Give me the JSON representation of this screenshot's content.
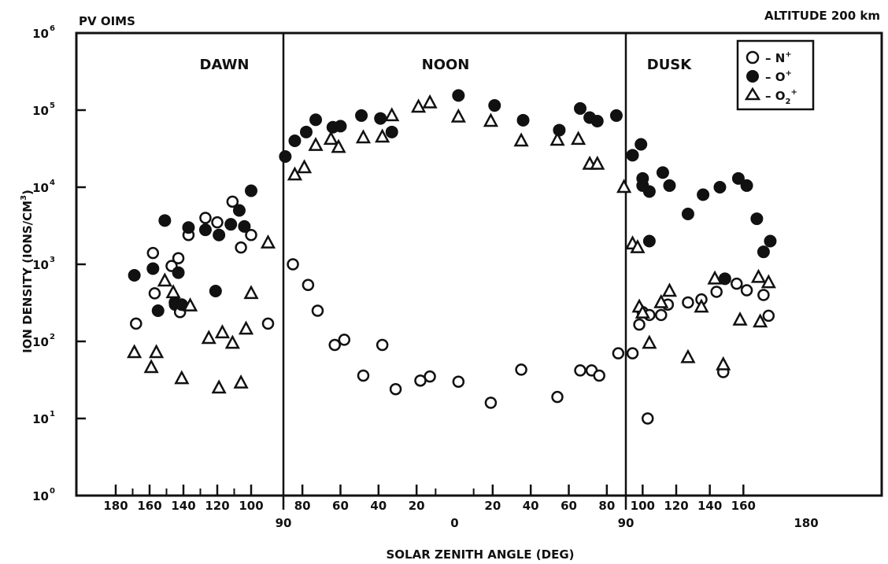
{
  "chart_data": {
    "type": "scatter",
    "title_left": "PV OIMS",
    "title_right": "ALTITUDE 200 km",
    "ylabel": "ION DENSITY (IONS/CM",
    "ylabel_sup": "3",
    "ylabel_close": ")",
    "xlabel": "SOLAR ZENITH ANGLE (DEG)",
    "yscale": "log",
    "ylim": [
      1,
      1000000
    ],
    "y_ticks": [
      {
        "base": "10",
        "exp": "6",
        "value": 1000000
      },
      {
        "base": "10",
        "exp": "5",
        "value": 100000
      },
      {
        "base": "10",
        "exp": "4",
        "value": 10000
      },
      {
        "base": "10",
        "exp": "3",
        "value": 1000
      },
      {
        "base": "10",
        "exp": "2",
        "value": 100
      },
      {
        "base": "10",
        "exp": "1",
        "value": 10
      },
      {
        "base": "10",
        "exp": "0",
        "value": 1
      }
    ],
    "sections": [
      {
        "label": "DAWN"
      },
      {
        "label": "NOON"
      },
      {
        "label": "DUSK"
      }
    ],
    "x_ticks_top_row": [
      "180",
      "160",
      "140",
      "120",
      "100",
      "80",
      "60",
      "40",
      "20",
      "20",
      "40",
      "60",
      "80",
      "100",
      "120",
      "140",
      "160"
    ],
    "x_ticks_bottom_row": [
      "90",
      "0",
      "90",
      "180"
    ],
    "legend": [
      {
        "key": "n_plus",
        "symbol": "open-circle",
        "text": "– N",
        "sup": "+",
        "sub": ""
      },
      {
        "key": "o_plus",
        "symbol": "filled-circle",
        "text": "– O",
        "sup": "+",
        "sub": ""
      },
      {
        "key": "o2_plus",
        "symbol": "open-triangle",
        "text": "– O",
        "sub": "2",
        "sup": "+"
      }
    ],
    "series": [
      {
        "name": "N+",
        "marker": "open-circle",
        "points": [
          {
            "sector": "dawn",
            "sza": 168,
            "y": 170
          },
          {
            "sector": "dawn",
            "sza": 158,
            "y": 1400
          },
          {
            "sector": "dawn",
            "sza": 157,
            "y": 420
          },
          {
            "sector": "dawn",
            "sza": 147,
            "y": 950
          },
          {
            "sector": "dawn",
            "sza": 143,
            "y": 1200
          },
          {
            "sector": "dawn",
            "sza": 145,
            "y": 300
          },
          {
            "sector": "dawn",
            "sza": 142,
            "y": 240
          },
          {
            "sector": "dawn",
            "sza": 137,
            "y": 2400
          },
          {
            "sector": "dawn",
            "sza": 127,
            "y": 4000
          },
          {
            "sector": "dawn",
            "sza": 120,
            "y": 3500
          },
          {
            "sector": "dawn",
            "sza": 111,
            "y": 6500
          },
          {
            "sector": "dawn",
            "sza": 106,
            "y": 1650
          },
          {
            "sector": "dawn",
            "sza": 100,
            "y": 2400
          },
          {
            "sector": "dawn",
            "sza": 90,
            "y": 170
          },
          {
            "sector": "noon",
            "sza": 85,
            "y": 1000
          },
          {
            "sector": "noon",
            "sza": 77,
            "y": 540
          },
          {
            "sector": "noon",
            "sza": 72,
            "y": 250
          },
          {
            "sector": "noon",
            "sza": 63,
            "y": 90
          },
          {
            "sector": "noon",
            "sza": 58,
            "y": 105
          },
          {
            "sector": "noon",
            "sza": 48,
            "y": 36
          },
          {
            "sector": "noon",
            "sza": 38,
            "y": 90
          },
          {
            "sector": "noon",
            "sza": 31,
            "y": 24
          },
          {
            "sector": "noon",
            "sza": 18,
            "y": 31
          },
          {
            "sector": "noon",
            "sza": 13,
            "y": 35
          },
          {
            "sector": "noon",
            "sza": 2,
            "y": 30
          },
          {
            "sector": "noon",
            "sza": 19,
            "y": 16
          },
          {
            "sector": "noon",
            "sza": 35,
            "y": 43
          },
          {
            "sector": "noon",
            "sza": 54,
            "y": 19
          },
          {
            "sector": "noon",
            "sza": 66,
            "y": 42
          },
          {
            "sector": "noon",
            "sza": 72,
            "y": 42
          },
          {
            "sector": "noon",
            "sza": 76,
            "y": 36
          },
          {
            "sector": "noon",
            "sza": 86,
            "y": 70
          },
          {
            "sector": "dusk",
            "sza": 94,
            "y": 70
          },
          {
            "sector": "dusk",
            "sza": 98,
            "y": 165
          },
          {
            "sector": "dusk",
            "sza": 100,
            "y": 240
          },
          {
            "sector": "dusk",
            "sza": 103,
            "y": 10
          },
          {
            "sector": "dusk",
            "sza": 104,
            "y": 220
          },
          {
            "sector": "dusk",
            "sza": 111,
            "y": 220
          },
          {
            "sector": "dusk",
            "sza": 115,
            "y": 300
          },
          {
            "sector": "dusk",
            "sza": 127,
            "y": 320
          },
          {
            "sector": "dusk",
            "sza": 135,
            "y": 350
          },
          {
            "sector": "dusk",
            "sza": 144,
            "y": 440
          },
          {
            "sector": "dusk",
            "sza": 148,
            "y": 40
          },
          {
            "sector": "dusk",
            "sza": 156,
            "y": 560
          },
          {
            "sector": "dusk",
            "sza": 162,
            "y": 460
          },
          {
            "sector": "dusk",
            "sza": 172,
            "y": 400
          },
          {
            "sector": "dusk",
            "sza": 175,
            "y": 215
          }
        ]
      },
      {
        "name": "O+",
        "marker": "filled-circle",
        "points": [
          {
            "sector": "dawn",
            "sza": 169,
            "y": 720
          },
          {
            "sector": "dawn",
            "sza": 158,
            "y": 880
          },
          {
            "sector": "dawn",
            "sza": 155,
            "y": 250
          },
          {
            "sector": "dawn",
            "sza": 151,
            "y": 3700
          },
          {
            "sector": "dawn",
            "sza": 145,
            "y": 320
          },
          {
            "sector": "dawn",
            "sza": 143,
            "y": 780
          },
          {
            "sector": "dawn",
            "sza": 141,
            "y": 300
          },
          {
            "sector": "dawn",
            "sza": 137,
            "y": 3000
          },
          {
            "sector": "dawn",
            "sza": 127,
            "y": 2800
          },
          {
            "sector": "dawn",
            "sza": 121,
            "y": 450
          },
          {
            "sector": "dawn",
            "sza": 119,
            "y": 2400
          },
          {
            "sector": "dawn",
            "sza": 112,
            "y": 3300
          },
          {
            "sector": "dawn",
            "sza": 107,
            "y": 5000
          },
          {
            "sector": "dawn",
            "sza": 104,
            "y": 3100
          },
          {
            "sector": "dawn",
            "sza": 100,
            "y": 9000
          },
          {
            "sector": "noon",
            "sza": 89,
            "y": 25000
          },
          {
            "sector": "noon",
            "sza": 84,
            "y": 40000
          },
          {
            "sector": "noon",
            "sza": 78,
            "y": 52000
          },
          {
            "sector": "noon",
            "sza": 73,
            "y": 75000
          },
          {
            "sector": "noon",
            "sza": 64,
            "y": 60000
          },
          {
            "sector": "noon",
            "sza": 60,
            "y": 62000
          },
          {
            "sector": "noon",
            "sza": 49,
            "y": 85000
          },
          {
            "sector": "noon",
            "sza": 39,
            "y": 78000
          },
          {
            "sector": "noon",
            "sza": 33,
            "y": 52000
          },
          {
            "sector": "noon",
            "sza": 2,
            "y": 155000
          },
          {
            "sector": "noon",
            "sza": 21,
            "y": 115000
          },
          {
            "sector": "noon",
            "sza": 36,
            "y": 74000
          },
          {
            "sector": "noon",
            "sza": 55,
            "y": 55000
          },
          {
            "sector": "noon",
            "sza": 66,
            "y": 105000
          },
          {
            "sector": "noon",
            "sza": 71,
            "y": 80000
          },
          {
            "sector": "noon",
            "sza": 75,
            "y": 72000
          },
          {
            "sector": "noon",
            "sza": 85,
            "y": 85000
          },
          {
            "sector": "dusk",
            "sza": 94,
            "y": 26000
          },
          {
            "sector": "dusk",
            "sza": 99,
            "y": 36000
          },
          {
            "sector": "dusk",
            "sza": 100,
            "y": 13000
          },
          {
            "sector": "dusk",
            "sza": 100,
            "y": 10500
          },
          {
            "sector": "dusk",
            "sza": 104,
            "y": 8800
          },
          {
            "sector": "dusk",
            "sza": 104,
            "y": 2000
          },
          {
            "sector": "dusk",
            "sza": 112,
            "y": 15500
          },
          {
            "sector": "dusk",
            "sza": 116,
            "y": 10500
          },
          {
            "sector": "dusk",
            "sza": 127,
            "y": 4500
          },
          {
            "sector": "dusk",
            "sza": 136,
            "y": 8000
          },
          {
            "sector": "dusk",
            "sza": 146,
            "y": 10000
          },
          {
            "sector": "dusk",
            "sza": 149,
            "y": 650
          },
          {
            "sector": "dusk",
            "sza": 157,
            "y": 13000
          },
          {
            "sector": "dusk",
            "sza": 162,
            "y": 10500
          },
          {
            "sector": "dusk",
            "sza": 168,
            "y": 3900
          },
          {
            "sector": "dusk",
            "sza": 172,
            "y": 1450
          },
          {
            "sector": "dusk",
            "sza": 176,
            "y": 2000
          }
        ]
      },
      {
        "name": "O2+",
        "marker": "open-triangle",
        "points": [
          {
            "sector": "dawn",
            "sza": 169,
            "y": 72
          },
          {
            "sector": "dawn",
            "sza": 159,
            "y": 46
          },
          {
            "sector": "dawn",
            "sza": 156,
            "y": 72
          },
          {
            "sector": "dawn",
            "sza": 151,
            "y": 610
          },
          {
            "sector": "dawn",
            "sza": 146,
            "y": 430
          },
          {
            "sector": "dawn",
            "sza": 141,
            "y": 33
          },
          {
            "sector": "dawn",
            "sza": 136,
            "y": 290
          },
          {
            "sector": "dawn",
            "sza": 125,
            "y": 110
          },
          {
            "sector": "dawn",
            "sza": 119,
            "y": 25
          },
          {
            "sector": "dawn",
            "sza": 117,
            "y": 130
          },
          {
            "sector": "dawn",
            "sza": 111,
            "y": 95
          },
          {
            "sector": "dawn",
            "sza": 106,
            "y": 29
          },
          {
            "sector": "dawn",
            "sza": 103,
            "y": 145
          },
          {
            "sector": "dawn",
            "sza": 100,
            "y": 420
          },
          {
            "sector": "dawn",
            "sza": 90,
            "y": 1900
          },
          {
            "sector": "noon",
            "sza": 84,
            "y": 14500
          },
          {
            "sector": "noon",
            "sza": 79,
            "y": 18000
          },
          {
            "sector": "noon",
            "sza": 73,
            "y": 35000
          },
          {
            "sector": "noon",
            "sza": 65,
            "y": 42000
          },
          {
            "sector": "noon",
            "sza": 61,
            "y": 33000
          },
          {
            "sector": "noon",
            "sza": 48,
            "y": 44000
          },
          {
            "sector": "noon",
            "sza": 38,
            "y": 45000
          },
          {
            "sector": "noon",
            "sza": 33,
            "y": 85000
          },
          {
            "sector": "noon",
            "sza": 19,
            "y": 110000
          },
          {
            "sector": "noon",
            "sza": 13,
            "y": 125000
          },
          {
            "sector": "noon",
            "sza": 2,
            "y": 82000
          },
          {
            "sector": "noon",
            "sza": 19,
            "y": 72000
          },
          {
            "sector": "noon",
            "sza": 35,
            "y": 40000
          },
          {
            "sector": "noon",
            "sza": 54,
            "y": 41000
          },
          {
            "sector": "noon",
            "sza": 65,
            "y": 42000
          },
          {
            "sector": "noon",
            "sza": 71,
            "y": 20000
          },
          {
            "sector": "noon",
            "sza": 75,
            "y": 20000
          },
          {
            "sector": "noon",
            "sza": 89,
            "y": 10000
          },
          {
            "sector": "dusk",
            "sza": 94,
            "y": 1850
          },
          {
            "sector": "dusk",
            "sza": 97,
            "y": 1650
          },
          {
            "sector": "dusk",
            "sza": 98,
            "y": 280
          },
          {
            "sector": "dusk",
            "sza": 100,
            "y": 235
          },
          {
            "sector": "dusk",
            "sza": 104,
            "y": 95
          },
          {
            "sector": "dusk",
            "sza": 111,
            "y": 320
          },
          {
            "sector": "dusk",
            "sza": 116,
            "y": 450
          },
          {
            "sector": "dusk",
            "sza": 127,
            "y": 62
          },
          {
            "sector": "dusk",
            "sza": 135,
            "y": 280
          },
          {
            "sector": "dusk",
            "sza": 143,
            "y": 650
          },
          {
            "sector": "dusk",
            "sza": 148,
            "y": 50
          },
          {
            "sector": "dusk",
            "sza": 158,
            "y": 190
          },
          {
            "sector": "dusk",
            "sza": 169,
            "y": 680
          },
          {
            "sector": "dusk",
            "sza": 170,
            "y": 180
          },
          {
            "sector": "dusk",
            "sza": 175,
            "y": 580
          }
        ]
      }
    ]
  }
}
